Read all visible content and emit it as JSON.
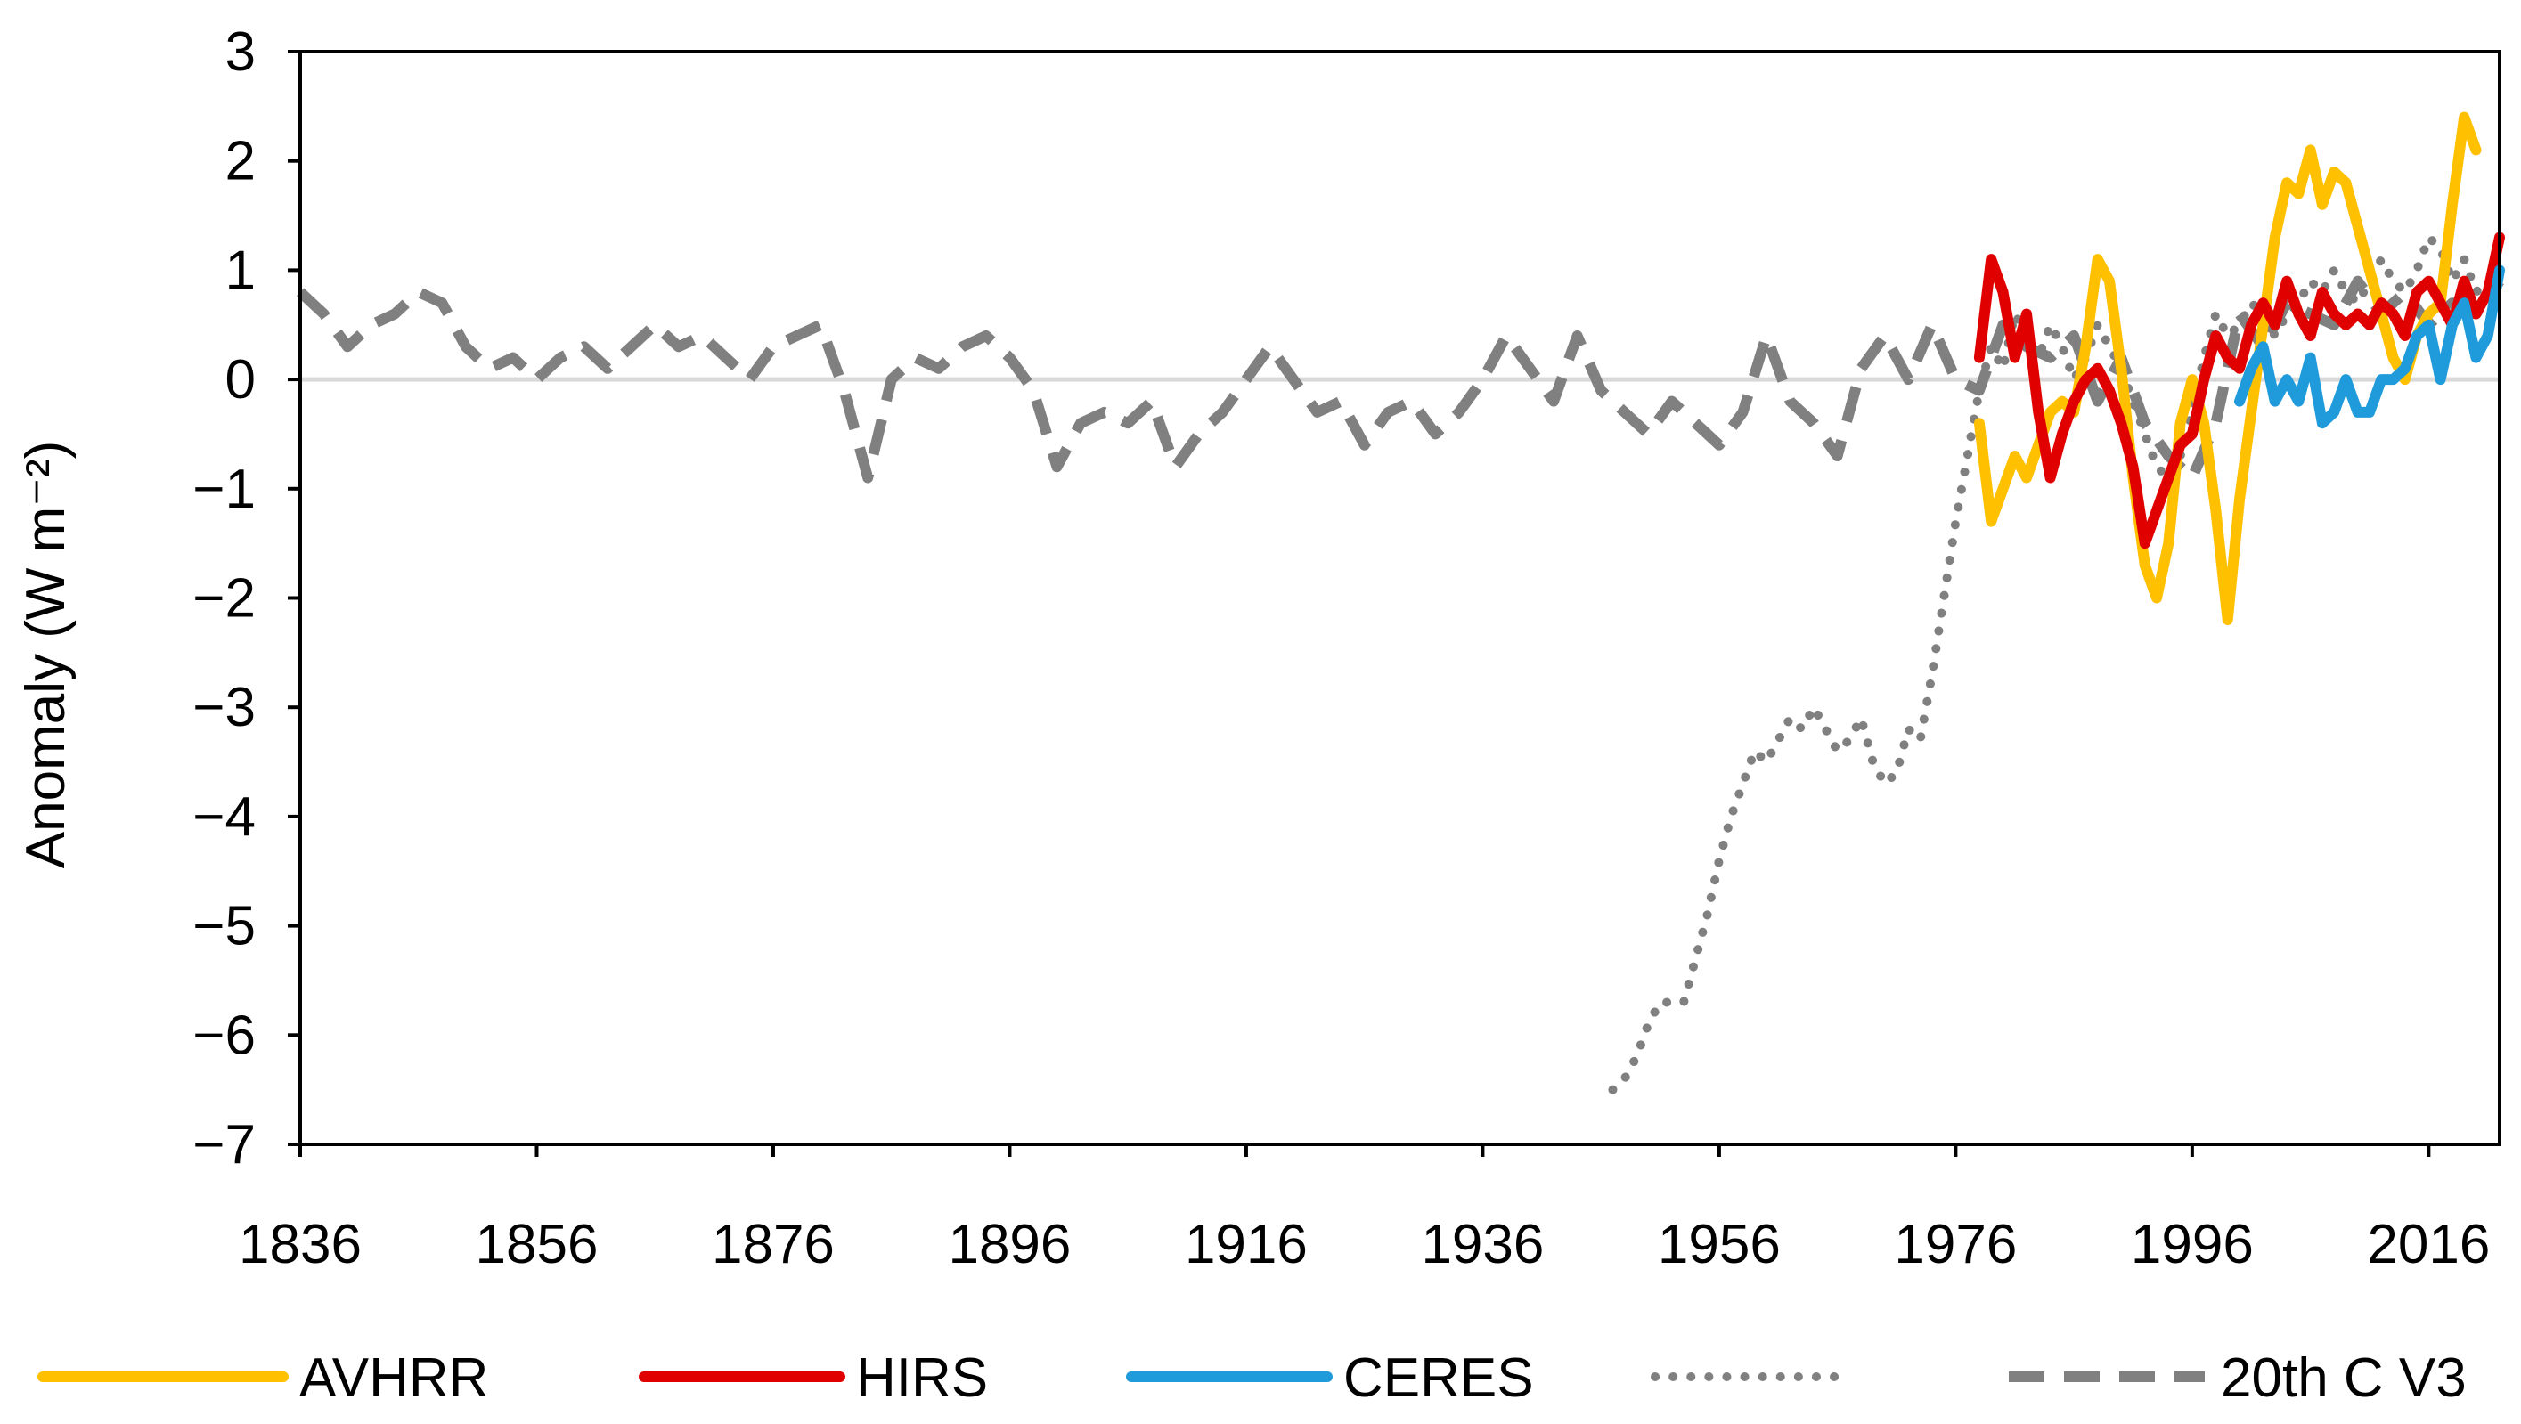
{
  "chart_data": {
    "type": "line",
    "title": "",
    "xlabel": "",
    "ylabel": "Anomaly (W m⁻²)",
    "xlim": [
      1836,
      2022
    ],
    "ylim": [
      -7,
      3
    ],
    "xticks": [
      "1836",
      "1856",
      "1876",
      "1896",
      "1916",
      "1936",
      "1956",
      "1976",
      "1996",
      "2016"
    ],
    "yticks": [
      "3",
      "2",
      "1",
      "0",
      "−1",
      "−2",
      "−3",
      "−4",
      "−5",
      "−6",
      "−7"
    ],
    "grid": false,
    "zero_line": true,
    "legend_position": "bottom",
    "series": [
      {
        "name": "AVHRR",
        "color": "#FFC000",
        "style": "solid",
        "x": [
          1978,
          1979,
          1980,
          1981,
          1982,
          1983,
          1984,
          1985,
          1986,
          1987,
          1988,
          1989,
          1990,
          1991,
          1992,
          1993,
          1994,
          1995,
          1996,
          1997,
          1998,
          1999,
          2000,
          2001,
          2002,
          2003,
          2004,
          2005,
          2006,
          2007,
          2008,
          2009,
          2010,
          2011,
          2012,
          2013,
          2014,
          2015,
          2016,
          2017,
          2018,
          2019,
          2020
        ],
        "y": [
          -0.4,
          -1.3,
          -1.0,
          -0.7,
          -0.9,
          -0.6,
          -0.3,
          -0.2,
          -0.3,
          0.3,
          1.1,
          0.9,
          0.1,
          -0.9,
          -1.7,
          -2.0,
          -1.5,
          -0.4,
          0.0,
          -0.4,
          -1.2,
          -2.2,
          -1.1,
          -0.3,
          0.5,
          1.3,
          1.8,
          1.7,
          2.1,
          1.6,
          1.9,
          1.8,
          1.4,
          1.0,
          0.6,
          0.2,
          0.0,
          0.4,
          0.6,
          0.7,
          1.6,
          2.4,
          2.1
        ]
      },
      {
        "name": "HIRS",
        "color": "#E00000",
        "style": "solid",
        "x": [
          1978,
          1979,
          1980,
          1981,
          1982,
          1983,
          1984,
          1985,
          1986,
          1987,
          1988,
          1989,
          1990,
          1991,
          1992,
          1993,
          1994,
          1995,
          1996,
          1997,
          1998,
          1999,
          2000,
          2001,
          2002,
          2003,
          2004,
          2005,
          2006,
          2007,
          2008,
          2009,
          2010,
          2011,
          2012,
          2013,
          2014,
          2015,
          2016,
          2017,
          2018,
          2019,
          2020,
          2021,
          2022
        ],
        "y": [
          0.2,
          1.1,
          0.8,
          0.2,
          0.6,
          -0.3,
          -0.9,
          -0.5,
          -0.2,
          0.0,
          0.1,
          -0.1,
          -0.4,
          -0.8,
          -1.5,
          -1.2,
          -0.9,
          -0.6,
          -0.5,
          0.0,
          0.4,
          0.2,
          0.1,
          0.5,
          0.7,
          0.5,
          0.9,
          0.6,
          0.4,
          0.8,
          0.6,
          0.5,
          0.6,
          0.5,
          0.7,
          0.6,
          0.4,
          0.8,
          0.9,
          0.7,
          0.5,
          0.9,
          0.6,
          0.8,
          1.3
        ]
      },
      {
        "name": "CERES",
        "color": "#1F9BDB",
        "style": "solid",
        "x": [
          2000,
          2001,
          2002,
          2003,
          2004,
          2005,
          2006,
          2007,
          2008,
          2009,
          2010,
          2011,
          2012,
          2013,
          2014,
          2015,
          2016,
          2017,
          2018,
          2019,
          2020,
          2021,
          2022
        ],
        "y": [
          -0.2,
          0.1,
          0.3,
          -0.2,
          0.0,
          -0.2,
          0.2,
          -0.4,
          -0.3,
          0.0,
          -0.3,
          -0.3,
          0.0,
          0.0,
          0.1,
          0.4,
          0.5,
          0.0,
          0.5,
          0.7,
          0.2,
          0.4,
          1.0
        ]
      },
      {
        "name": "",
        "color": "#808080",
        "style": "dotted",
        "x": [
          1947,
          1948,
          1949,
          1950,
          1951,
          1952,
          1953,
          1954,
          1955,
          1956,
          1957,
          1958,
          1959,
          1960,
          1961,
          1962,
          1963,
          1964,
          1965,
          1966,
          1967,
          1968,
          1969,
          1970,
          1971,
          1972,
          1973,
          1974,
          1975,
          1976,
          1977,
          1978,
          1979,
          1980,
          1981,
          1982,
          1983,
          1984,
          1985,
          1986,
          1987,
          1988,
          1989,
          1990,
          1991,
          1992,
          1993,
          1994,
          1995,
          1996,
          1997,
          1998,
          1999,
          2000,
          2001,
          2002,
          2003,
          2004,
          2005,
          2006,
          2007,
          2008,
          2009,
          2010,
          2011,
          2012,
          2013,
          2014,
          2015,
          2016,
          2017,
          2018,
          2019,
          2020,
          2021
        ],
        "y": [
          -6.5,
          -6.4,
          -6.2,
          -5.9,
          -5.7,
          -5.7,
          -5.7,
          -5.3,
          -4.9,
          -4.4,
          -4.0,
          -3.7,
          -3.4,
          -3.5,
          -3.3,
          -3.1,
          -3.2,
          -3.0,
          -3.2,
          -3.4,
          -3.3,
          -3.1,
          -3.5,
          -3.7,
          -3.6,
          -3.2,
          -3.3,
          -2.7,
          -2.0,
          -1.3,
          -0.7,
          -0.1,
          0.3,
          0.1,
          0.6,
          0.4,
          0.2,
          0.5,
          0.3,
          0.0,
          0.2,
          0.5,
          0.3,
          0.1,
          -0.2,
          -0.5,
          -0.8,
          -0.9,
          -0.7,
          -0.3,
          0.2,
          0.6,
          0.4,
          0.5,
          0.7,
          0.6,
          0.4,
          0.6,
          0.7,
          0.9,
          0.8,
          1.0,
          0.8,
          0.7,
          0.9,
          1.1,
          0.9,
          0.8,
          1.0,
          1.3,
          1.2,
          0.9,
          1.1,
          0.8,
          0.9
        ]
      },
      {
        "name": "20th C V3",
        "color": "#808080",
        "style": "dashed",
        "x": [
          1836,
          1838,
          1840,
          1842,
          1844,
          1846,
          1848,
          1850,
          1852,
          1854,
          1856,
          1858,
          1860,
          1862,
          1864,
          1866,
          1868,
          1870,
          1872,
          1874,
          1876,
          1878,
          1880,
          1882,
          1884,
          1886,
          1888,
          1890,
          1892,
          1894,
          1896,
          1898,
          1900,
          1902,
          1904,
          1906,
          1908,
          1910,
          1912,
          1914,
          1916,
          1918,
          1920,
          1922,
          1924,
          1926,
          1928,
          1930,
          1932,
          1934,
          1936,
          1938,
          1940,
          1942,
          1944,
          1946,
          1948,
          1950,
          1952,
          1954,
          1956,
          1958,
          1960,
          1962,
          1964,
          1966,
          1968,
          1970,
          1972,
          1974,
          1976,
          1978,
          1980,
          1982,
          1984,
          1986,
          1988,
          1990,
          1992,
          1994,
          1996,
          1998,
          2000,
          2002,
          2004,
          2006,
          2008,
          2010,
          2012,
          2014,
          2016,
          2018,
          2020,
          2022
        ],
        "y": [
          0.8,
          0.6,
          0.3,
          0.5,
          0.6,
          0.8,
          0.7,
          0.3,
          0.1,
          0.2,
          0.0,
          0.2,
          0.3,
          0.1,
          0.3,
          0.5,
          0.3,
          0.4,
          0.2,
          0.0,
          0.3,
          0.4,
          0.5,
          -0.1,
          -0.9,
          0.0,
          0.2,
          0.1,
          0.3,
          0.4,
          0.2,
          -0.1,
          -0.8,
          -0.4,
          -0.3,
          -0.4,
          -0.2,
          -0.8,
          -0.5,
          -0.3,
          0.0,
          0.3,
          0.0,
          -0.3,
          -0.2,
          -0.6,
          -0.3,
          -0.2,
          -0.5,
          -0.3,
          0.0,
          0.4,
          0.1,
          -0.2,
          0.4,
          -0.1,
          -0.3,
          -0.5,
          -0.2,
          -0.4,
          -0.6,
          -0.3,
          0.4,
          -0.2,
          -0.4,
          -0.7,
          0.1,
          0.4,
          0.0,
          0.5,
          0.0,
          -0.1,
          0.5,
          0.3,
          0.2,
          0.4,
          -0.2,
          0.2,
          -0.4,
          -0.7,
          -0.9,
          -0.4,
          0.6,
          0.3,
          0.7,
          0.6,
          0.5,
          0.9,
          0.6,
          0.8,
          0.5,
          0.7,
          0.6,
          0.9
        ]
      }
    ]
  }
}
